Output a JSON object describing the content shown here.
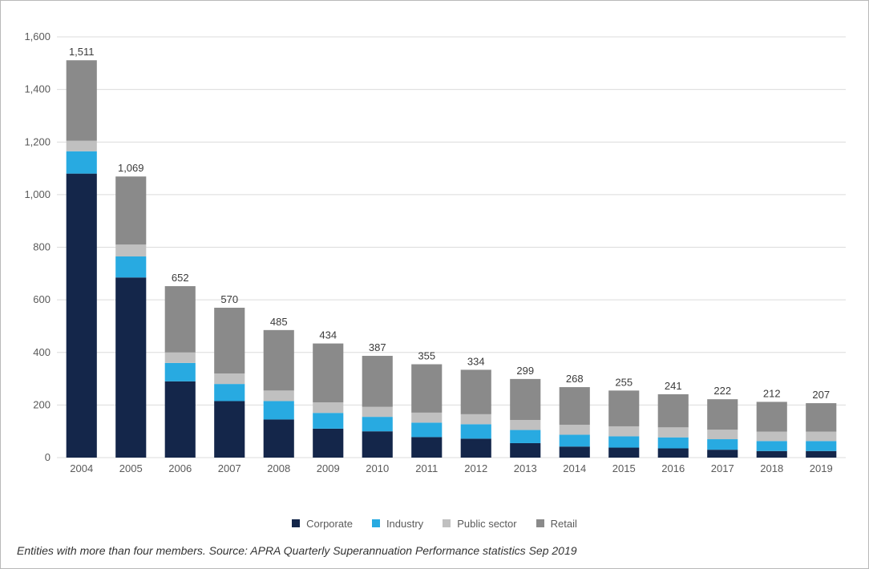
{
  "chart": {
    "type": "stacked-bar",
    "background_color": "#ffffff",
    "border_color": "#b9b9b9",
    "grid_color": "#dcdcdc",
    "axis_label_color": "#5a5a5a",
    "bar_label_color": "#3a3a3a",
    "y": {
      "min": 0,
      "max": 1600,
      "step": 200
    },
    "categories": [
      "2004",
      "2005",
      "2006",
      "2007",
      "2008",
      "2009",
      "2010",
      "2011",
      "2012",
      "2013",
      "2014",
      "2015",
      "2016",
      "2017",
      "2018",
      "2019"
    ],
    "series": [
      {
        "name": "Corporate",
        "color": "#14264a",
        "values": [
          1080,
          685,
          290,
          215,
          145,
          110,
          100,
          78,
          72,
          55,
          42,
          38,
          35,
          30,
          25,
          25
        ]
      },
      {
        "name": "Industry",
        "color": "#28aae1",
        "values": [
          85,
          80,
          70,
          65,
          70,
          60,
          55,
          55,
          55,
          50,
          45,
          43,
          42,
          40,
          38,
          38
        ]
      },
      {
        "name": "Public sector",
        "color": "#c0c0c0",
        "values": [
          40,
          45,
          40,
          40,
          40,
          40,
          38,
          38,
          38,
          38,
          38,
          38,
          38,
          36,
          36,
          36
        ]
      },
      {
        "name": "Retail",
        "color": "#8a8a8a",
        "values": [
          306,
          259,
          252,
          250,
          230,
          224,
          194,
          184,
          169,
          156,
          143,
          136,
          126,
          116,
          113,
          108
        ]
      }
    ],
    "totals_label": [
      "1,511",
      "1,069",
      "652",
      "570",
      "485",
      "434",
      "387",
      "355",
      "334",
      "299",
      "268",
      "255",
      "241",
      "222",
      "212",
      "207"
    ],
    "legend_fontsize": 13,
    "tick_fontsize": 13,
    "bar_label_fontsize": 13,
    "bar_width_ratio": 0.62
  },
  "caption": "Entities with more than four members. Source: APRA Quarterly Superannuation Performance statistics Sep 2019"
}
